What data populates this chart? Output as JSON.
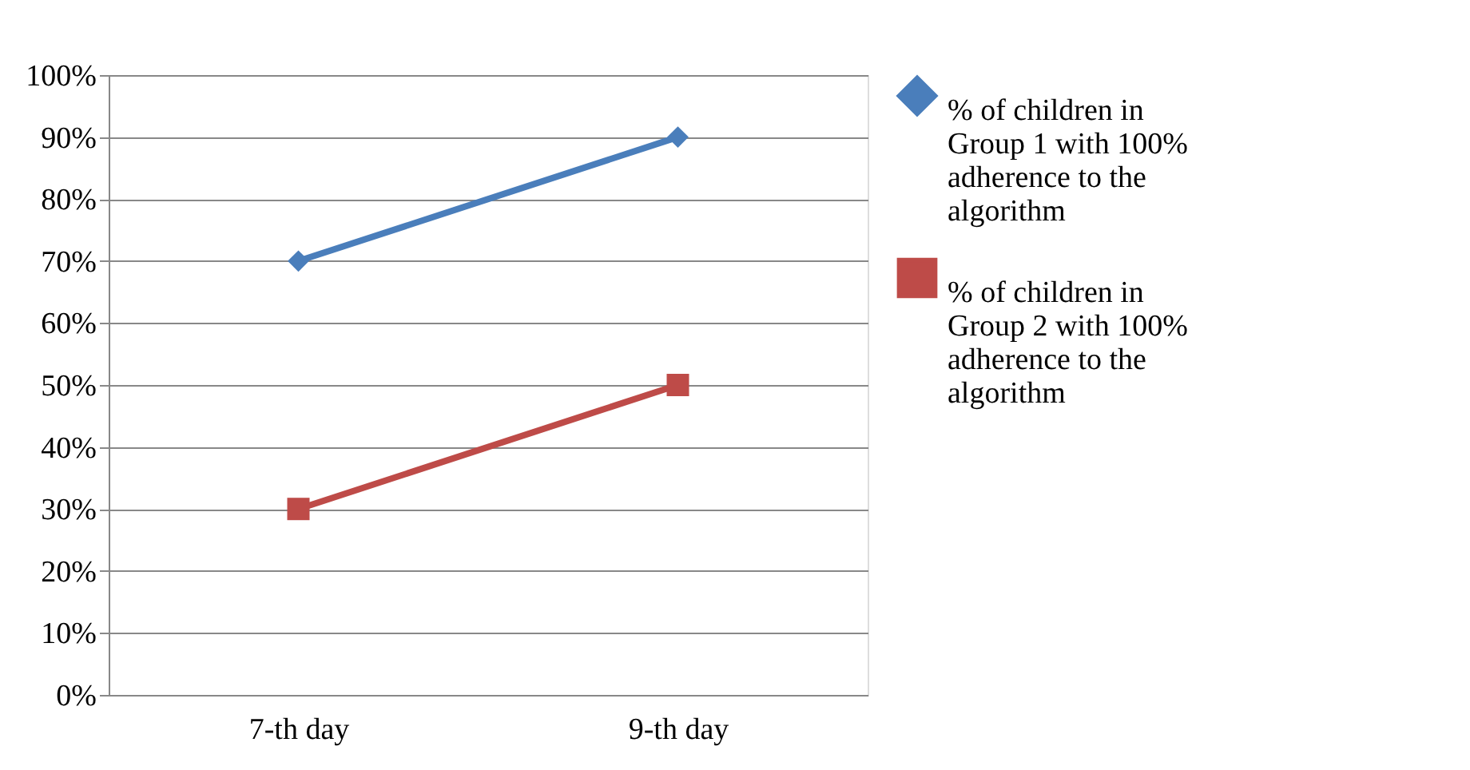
{
  "chart_data": {
    "type": "line",
    "categories": [
      "7-th day",
      "9-th day"
    ],
    "series": [
      {
        "name": "% of children in Group 1 with 100% adherence to the algorithm",
        "color": "#4a7ebb",
        "values": [
          70,
          90
        ],
        "marker": "diamond"
      },
      {
        "name": "%  of children in Group 2 with 100% adherence to the algorithm",
        "color": "#be4b48",
        "values": [
          30,
          50
        ],
        "marker": "square"
      }
    ],
    "ylim": [
      0,
      100
    ],
    "yticks": [
      {
        "value": 0,
        "label": "0%"
      },
      {
        "value": 10,
        "label": "10%"
      },
      {
        "value": 20,
        "label": "20%"
      },
      {
        "value": 30,
        "label": "30%"
      },
      {
        "value": 40,
        "label": "40%"
      },
      {
        "value": 50,
        "label": "50%"
      },
      {
        "value": 60,
        "label": "60%"
      },
      {
        "value": 70,
        "label": "70%"
      },
      {
        "value": 80,
        "label": "80%"
      },
      {
        "value": 90,
        "label": "90%"
      },
      {
        "value": 100,
        "label": "100%"
      }
    ],
    "grid": "y",
    "legend": "right",
    "line_style": "solid"
  }
}
